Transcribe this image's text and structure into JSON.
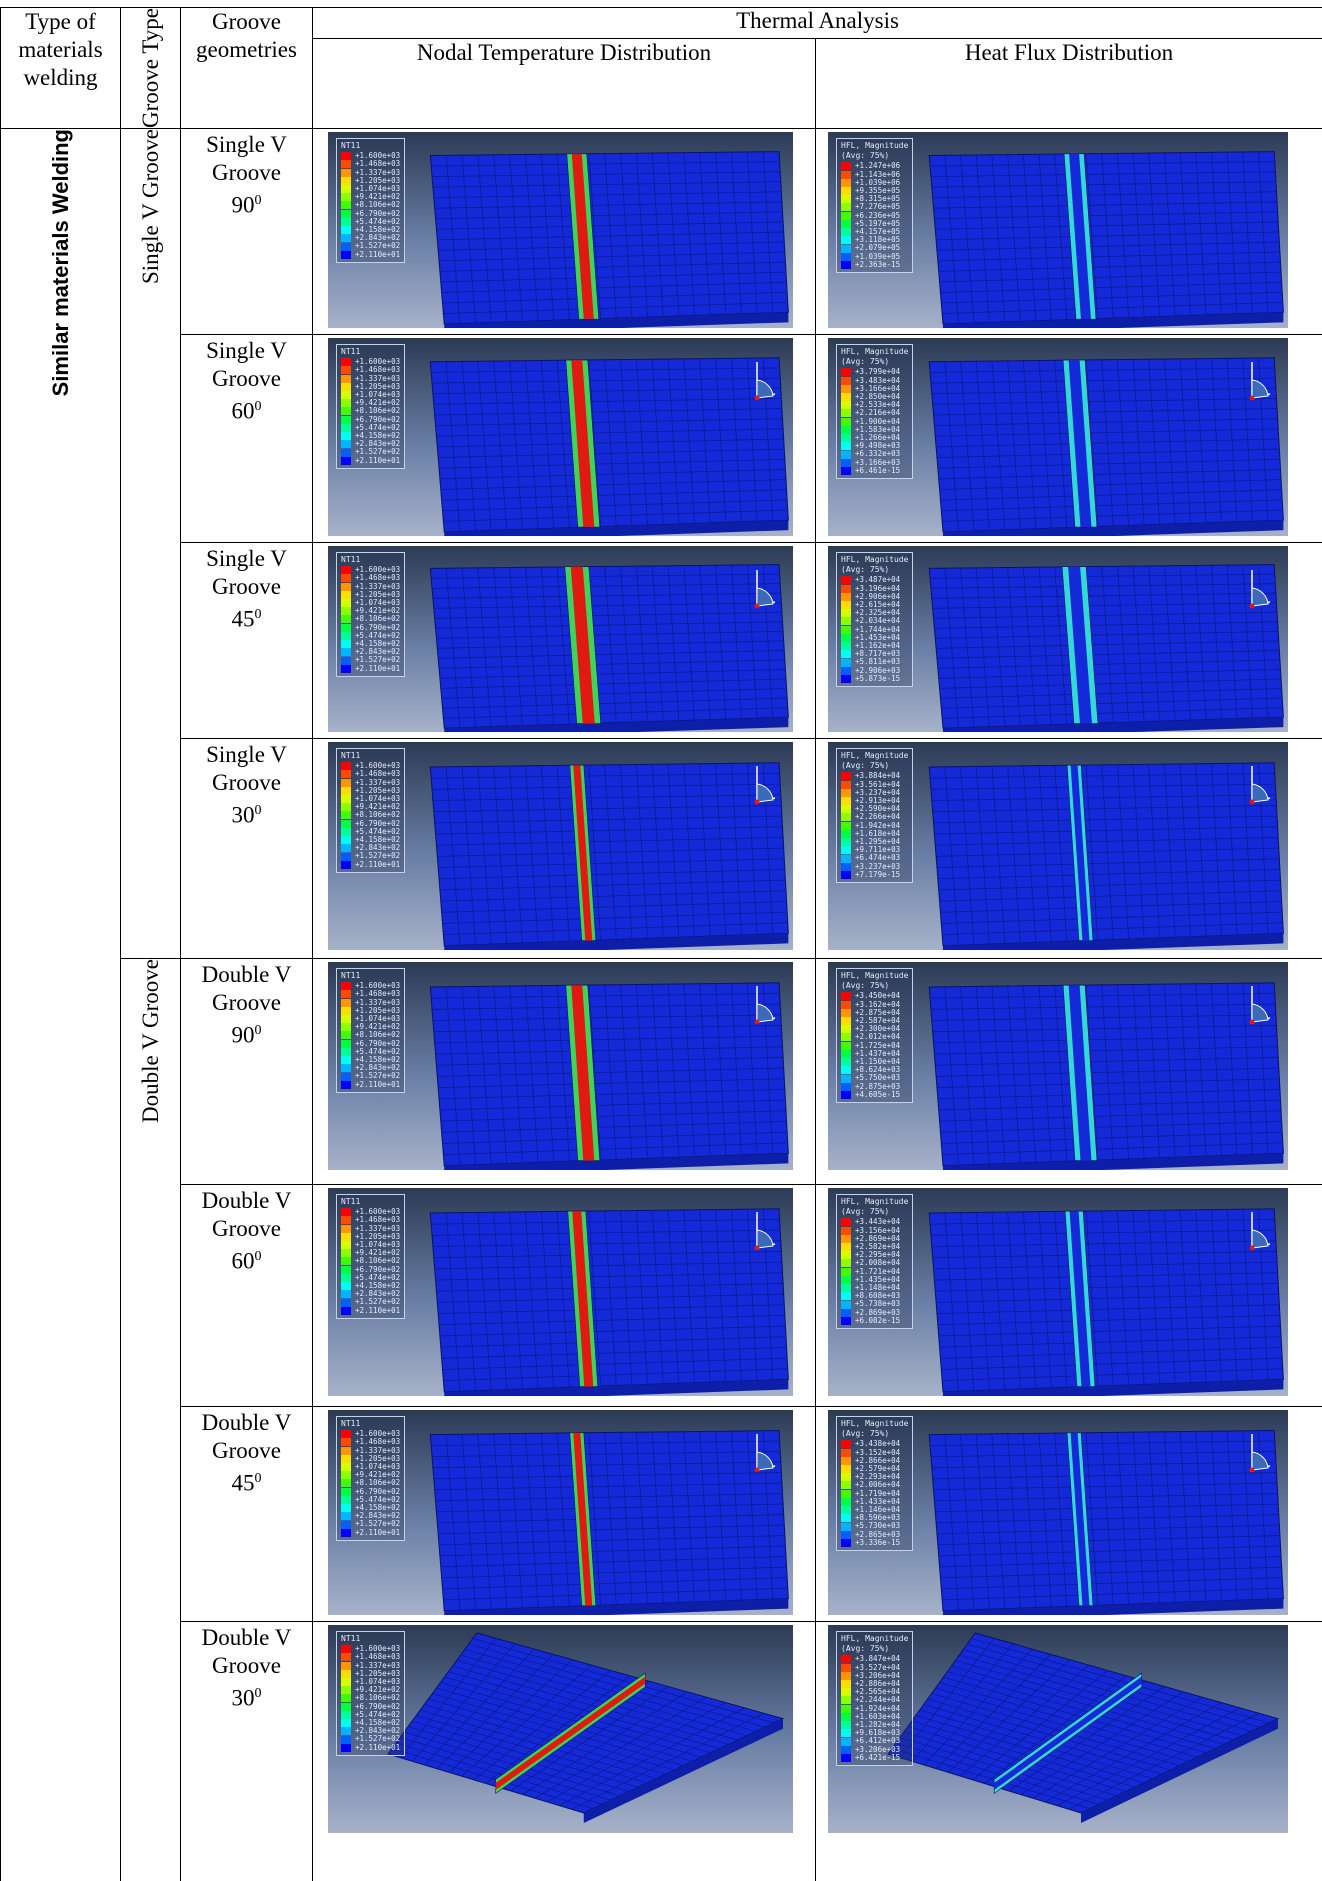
{
  "header": {
    "col1": "Type of materials welding",
    "col2": "Groove Type",
    "col3": "Groove geometries",
    "thermal": "Thermal Analysis",
    "nodal": "Nodal Temperature Distribution",
    "heat": "Heat Flux Distribution"
  },
  "side": {
    "material": "Similar materials Welding",
    "single_group": "Single V Groove",
    "double_group": "Double  V Groove"
  },
  "rows": [
    {
      "line1": "Single V",
      "line2": "Groove",
      "angle": "90",
      "deg": "0",
      "nt_title": "NT11",
      "nt_values": [
        "+1.600e+03",
        "+1.468e+03",
        "+1.337e+03",
        "+1.205e+03",
        "+1.074e+03",
        "+9.421e+02",
        "+8.106e+02",
        "+6.790e+02",
        "+5.474e+02",
        "+4.158e+02",
        "+2.843e+02",
        "+1.527e+02",
        "+2.110e+01"
      ],
      "hf_title": "HFL, Magnitude",
      "hf_avg": "(Avg: 75%)",
      "hf_values": [
        "+1.247e+06",
        "+1.143e+06",
        "+1.039e+06",
        "+9.355e+05",
        "+8.315e+05",
        "+7.276e+05",
        "+6.236e+05",
        "+5.197e+05",
        "+4.157e+05",
        "+3.118e+05",
        "+2.079e+05",
        "+1.039e+05",
        "+2.363e-15"
      ]
    },
    {
      "line1": "Single V",
      "line2": "Groove",
      "angle": "60",
      "deg": "0",
      "nt_title": "NT11",
      "nt_values": [
        "+1.600e+03",
        "+1.468e+03",
        "+1.337e+03",
        "+1.205e+03",
        "+1.074e+03",
        "+9.421e+02",
        "+8.106e+02",
        "+6.790e+02",
        "+5.474e+02",
        "+4.158e+02",
        "+2.843e+02",
        "+1.527e+02",
        "+2.110e+01"
      ],
      "hf_title": "HFL, Magnitude",
      "hf_avg": "(Avg: 75%)",
      "hf_values": [
        "+3.799e+04",
        "+3.483e+04",
        "+3.166e+04",
        "+2.850e+04",
        "+2.533e+04",
        "+2.216e+04",
        "+1.900e+04",
        "+1.583e+04",
        "+1.266e+04",
        "+9.498e+03",
        "+6.332e+03",
        "+3.166e+03",
        "+6.461e-15"
      ]
    },
    {
      "line1": "Single V",
      "line2": "Groove",
      "angle": "45",
      "deg": "0",
      "nt_title": "NT11",
      "nt_values": [
        "+1.600e+03",
        "+1.468e+03",
        "+1.337e+03",
        "+1.205e+03",
        "+1.074e+03",
        "+9.421e+02",
        "+8.106e+02",
        "+6.790e+02",
        "+5.474e+02",
        "+4.158e+02",
        "+2.843e+02",
        "+1.527e+02",
        "+2.110e+01"
      ],
      "hf_title": "HFL, Magnitude",
      "hf_avg": "(Avg: 75%)",
      "hf_values": [
        "+3.487e+04",
        "+3.196e+04",
        "+2.906e+04",
        "+2.615e+04",
        "+2.325e+04",
        "+2.034e+04",
        "+1.744e+04",
        "+1.453e+04",
        "+1.162e+04",
        "+8.717e+03",
        "+5.811e+03",
        "+2.906e+03",
        "+5.873e-15"
      ]
    },
    {
      "line1": "Single V",
      "line2": "Groove",
      "angle": "30",
      "deg": "0",
      "nt_title": "NT11",
      "nt_values": [
        "+1.600e+03",
        "+1.468e+03",
        "+1.337e+03",
        "+1.205e+03",
        "+1.074e+03",
        "+9.421e+02",
        "+8.106e+02",
        "+6.790e+02",
        "+5.474e+02",
        "+4.158e+02",
        "+2.843e+02",
        "+1.527e+02",
        "+2.110e+01"
      ],
      "hf_title": "HFL, Magnitude",
      "hf_avg": "(Avg: 75%)",
      "hf_values": [
        "+3.884e+04",
        "+3.561e+04",
        "+3.237e+04",
        "+2.913e+04",
        "+2.590e+04",
        "+2.266e+04",
        "+1.942e+04",
        "+1.618e+04",
        "+1.295e+04",
        "+9.711e+03",
        "+6.474e+03",
        "+3.237e+03",
        "+7.179e-15"
      ]
    },
    {
      "line1": "Double V",
      "line2": "Groove",
      "angle": "90",
      "deg": "0",
      "nt_title": "NT11",
      "nt_values": [
        "+1.600e+03",
        "+1.468e+03",
        "+1.337e+03",
        "+1.205e+03",
        "+1.074e+03",
        "+9.421e+02",
        "+8.106e+02",
        "+6.790e+02",
        "+5.474e+02",
        "+4.158e+02",
        "+2.843e+02",
        "+1.527e+02",
        "+2.110e+01"
      ],
      "hf_title": "HFL, Magnitude",
      "hf_avg": "(Avg: 75%)",
      "hf_values": [
        "+3.450e+04",
        "+3.162e+04",
        "+2.875e+04",
        "+2.587e+04",
        "+2.300e+04",
        "+2.012e+04",
        "+1.725e+04",
        "+1.437e+04",
        "+1.150e+04",
        "+8.624e+03",
        "+5.750e+03",
        "+2.875e+03",
        "+4.605e-15"
      ]
    },
    {
      "line1": "Double V",
      "line2": "Groove",
      "angle": "60",
      "deg": "0",
      "nt_title": "NT11",
      "nt_values": [
        "+1.600e+03",
        "+1.468e+03",
        "+1.337e+03",
        "+1.205e+03",
        "+1.074e+03",
        "+9.421e+02",
        "+8.106e+02",
        "+6.790e+02",
        "+5.474e+02",
        "+4.158e+02",
        "+2.843e+02",
        "+1.527e+02",
        "+2.110e+01"
      ],
      "hf_title": "HFL, Magnitude",
      "hf_avg": "(Avg: 75%)",
      "hf_values": [
        "+3.443e+04",
        "+3.156e+04",
        "+2.869e+04",
        "+2.582e+04",
        "+2.295e+04",
        "+2.008e+04",
        "+1.721e+04",
        "+1.435e+04",
        "+1.148e+04",
        "+8.608e+03",
        "+5.738e+03",
        "+2.869e+03",
        "+6.082e-15"
      ]
    },
    {
      "line1": "Double V",
      "line2": "Groove",
      "angle": "45",
      "deg": "0",
      "nt_title": "NT11",
      "nt_values": [
        "+1.600e+03",
        "+1.468e+03",
        "+1.337e+03",
        "+1.205e+03",
        "+1.074e+03",
        "+9.421e+02",
        "+8.106e+02",
        "+6.790e+02",
        "+5.474e+02",
        "+4.158e+02",
        "+2.843e+02",
        "+1.527e+02",
        "+2.110e+01"
      ],
      "hf_title": "HFL, Magnitude",
      "hf_avg": "(Avg: 75%)",
      "hf_values": [
        "+3.438e+04",
        "+3.152e+04",
        "+2.866e+04",
        "+2.579e+04",
        "+2.293e+04",
        "+2.006e+04",
        "+1.719e+04",
        "+1.433e+04",
        "+1.146e+04",
        "+8.596e+03",
        "+5.730e+03",
        "+2.865e+03",
        "+3.336e-15"
      ]
    },
    {
      "line1": "Double V",
      "line2": "Groove",
      "angle": "30",
      "deg": "0",
      "nt_title": "NT11",
      "nt_values": [
        "+1.600e+03",
        "+1.468e+03",
        "+1.337e+03",
        "+1.205e+03",
        "+1.074e+03",
        "+9.421e+02",
        "+8.106e+02",
        "+6.790e+02",
        "+5.474e+02",
        "+4.158e+02",
        "+2.843e+02",
        "+1.527e+02",
        "+2.110e+01"
      ],
      "hf_title": "HFL, Magnitude",
      "hf_avg": "(Avg: 75%)",
      "hf_values": [
        "+3.847e+04",
        "+3.527e+04",
        "+3.206e+04",
        "+2.886e+04",
        "+2.565e+04",
        "+2.244e+04",
        "+1.924e+04",
        "+1.603e+04",
        "+1.282e+04",
        "+9.618e+03",
        "+6.412e+03",
        "+3.206e+03",
        "+6.421e-15"
      ]
    }
  ],
  "legend_colors": [
    "#ff0000",
    "#ff4a00",
    "#ff9500",
    "#ffdd00",
    "#d6ff00",
    "#8cff00",
    "#3dff00",
    "#00ff40",
    "#00ff9a",
    "#00fff0",
    "#00b5ff",
    "#0060ff",
    "#0000ff"
  ],
  "colors": {
    "plate": "#1429d8",
    "mesh": "#0c1a8a",
    "weld_hot": "#e01a10",
    "weld_edge": "#3fd35a",
    "flux": "#35d8d8"
  }
}
